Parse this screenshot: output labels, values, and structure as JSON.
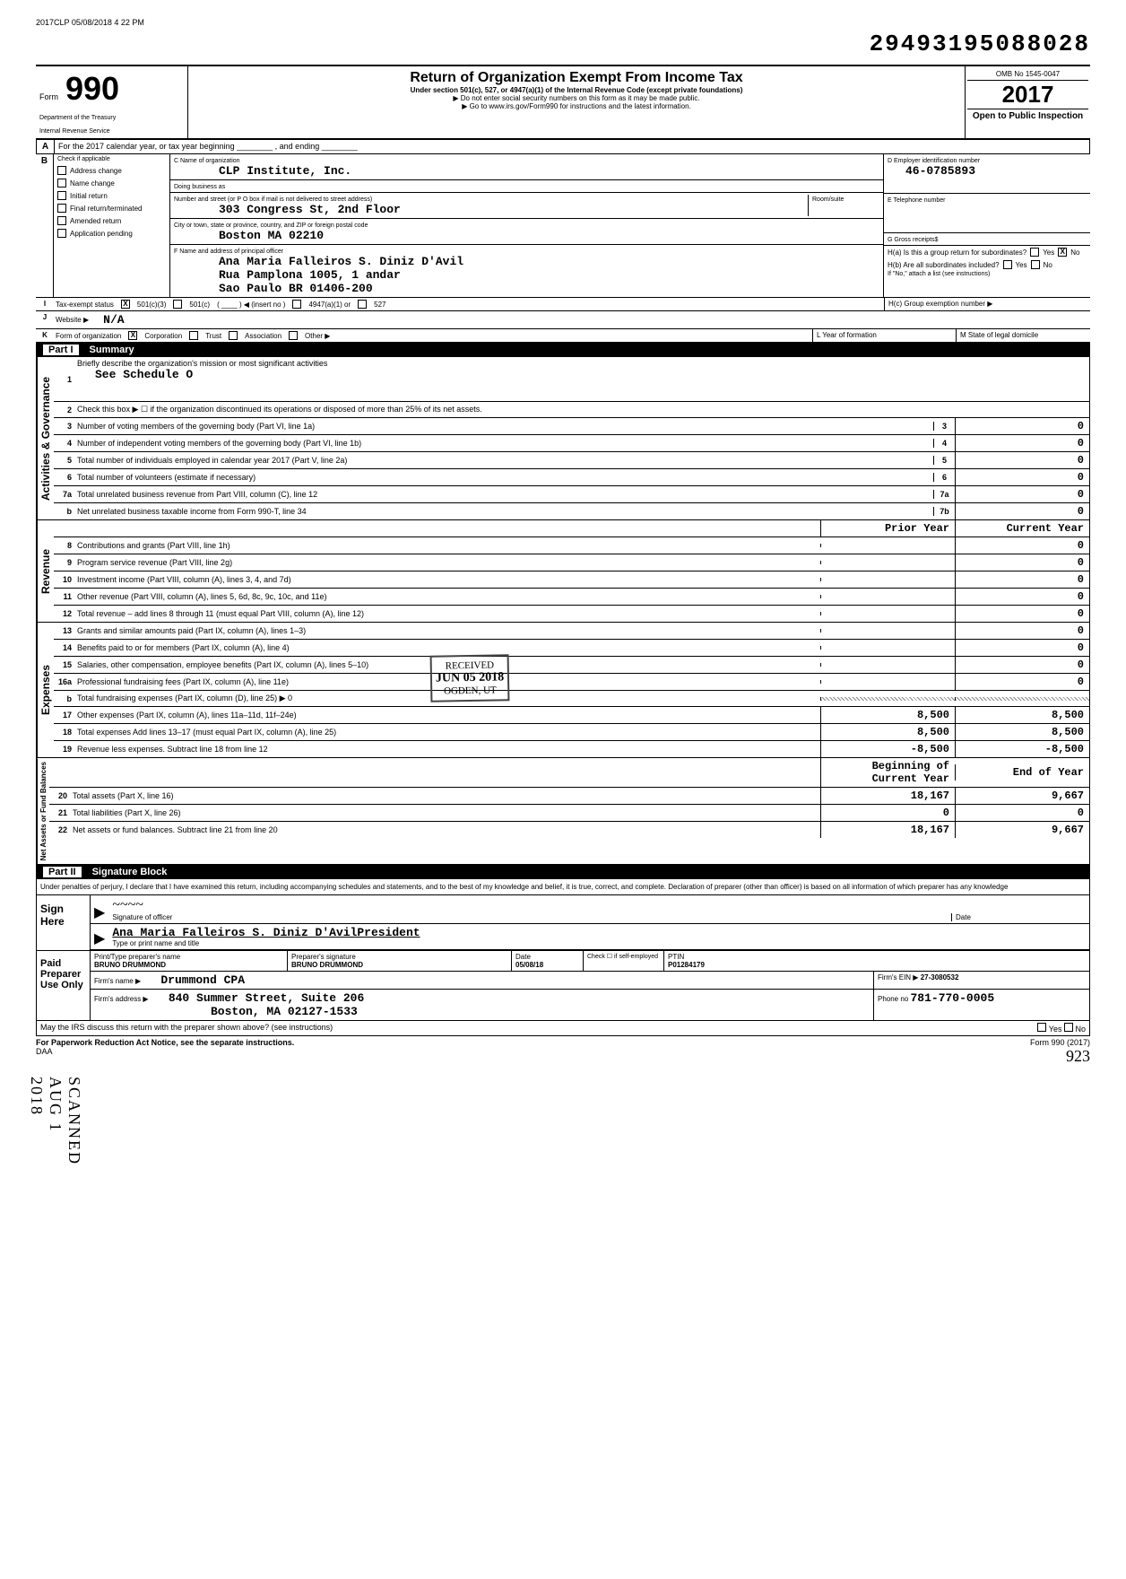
{
  "header_stamp": "2017CLP 05/08/2018 4 22 PM",
  "dln": "29493195088028",
  "form": {
    "prefix": "Form",
    "number": "990",
    "dept": "Department of the Treasury",
    "irs": "Internal Revenue Service",
    "title": "Return of Organization Exempt From Income Tax",
    "subtitle": "Under section 501(c), 527, or 4947(a)(1) of the Internal Revenue Code (except private foundations)",
    "instr1": "▶ Do not enter social security numbers on this form as it may be made public.",
    "instr2": "▶ Go to www.irs.gov/Form990 for instructions and the latest information.",
    "omb": "OMB No 1545-0047",
    "year": "2017",
    "pub_insp": "Open to Public Inspection"
  },
  "line_a": "For the 2017 calendar year, or tax year beginning ________ , and ending ________",
  "section_b": {
    "label": "Check if applicable",
    "items": [
      "Address change",
      "Name change",
      "Initial return",
      "Final return/terminated",
      "Amended return",
      "Application pending"
    ]
  },
  "section_c": {
    "name_label": "C Name of organization",
    "name": "CLP Institute, Inc.",
    "dba_label": "Doing business as",
    "addr_label": "Number and street (or P O box if mail is not delivered to street address)",
    "addr": "303 Congress St, 2nd Floor",
    "room_label": "Room/suite",
    "city_label": "City or town, state or province, country, and ZIP or foreign postal code",
    "city": "Boston                  MA 02210",
    "officer_label": "F Name and address of principal officer",
    "officer_name": "Ana Maria Falleiros S. Diniz D'Avil",
    "officer_addr1": "Rua Pamplona 1005, 1 andar",
    "officer_addr2": "Sao Paulo              BR 01406-200"
  },
  "section_d": {
    "ein_label": "D Employer identification number",
    "ein": "46-0785893",
    "phone_label": "E Telephone number",
    "gross_label": "G Gross receipts$"
  },
  "section_h": {
    "ha": "H(a) Is this a group return for subordinates?",
    "hb": "H(b) Are all subordinates included?",
    "hb_note": "If \"No,\" attach a list (see instructions)",
    "hc": "H(c) Group exemption number ▶",
    "yes": "Yes",
    "no": "No"
  },
  "line_i": {
    "label": "Tax-exempt status",
    "opts": [
      "501(c)(3)",
      "501(c)",
      "(insert no )",
      "4947(a)(1) or",
      "527"
    ]
  },
  "line_j": {
    "label": "Website ▶",
    "value": "N/A"
  },
  "line_k": {
    "label": "Form of organization",
    "opts": [
      "Corporation",
      "Trust",
      "Association",
      "Other ▶"
    ]
  },
  "line_l": "L  Year of formation",
  "line_m": "M  State of legal domicile",
  "part1": {
    "num": "Part I",
    "title": "Summary"
  },
  "activities": {
    "label": "Activities & Governance",
    "q1": "Briefly describe the organization's mission or most significant activities",
    "q1_val": "See Schedule O",
    "q2": "Check this box ▶ ☐ if the organization discontinued its operations or disposed of more than 25% of its net assets.",
    "rows": [
      {
        "n": "3",
        "d": "Number of voting members of the governing body (Part VI, line 1a)",
        "box": "3",
        "v": "0"
      },
      {
        "n": "4",
        "d": "Number of independent voting members of the governing body (Part VI, line 1b)",
        "box": "4",
        "v": "0"
      },
      {
        "n": "5",
        "d": "Total number of individuals employed in calendar year 2017 (Part V, line 2a)",
        "box": "5",
        "v": "0"
      },
      {
        "n": "6",
        "d": "Total number of volunteers (estimate if necessary)",
        "box": "6",
        "v": "0"
      },
      {
        "n": "7a",
        "d": "Total unrelated business revenue from Part VIII, column (C), line 12",
        "box": "7a",
        "v": "0"
      },
      {
        "n": "b",
        "d": "Net unrelated business taxable income from Form 990-T, line 34",
        "box": "7b",
        "v": "0"
      }
    ]
  },
  "col_headers": {
    "prior": "Prior Year",
    "current": "Current Year",
    "beg": "Beginning of Current Year",
    "end": "End of Year"
  },
  "revenue": {
    "label": "Revenue",
    "rows": [
      {
        "n": "8",
        "d": "Contributions and grants (Part VIII, line 1h)",
        "v1": "",
        "v2": "0"
      },
      {
        "n": "9",
        "d": "Program service revenue (Part VIII, line 2g)",
        "v1": "",
        "v2": "0"
      },
      {
        "n": "10",
        "d": "Investment income (Part VIII, column (A), lines 3, 4, and 7d)",
        "v1": "",
        "v2": "0"
      },
      {
        "n": "11",
        "d": "Other revenue (Part VIII, column (A), lines 5, 6d, 8c, 9c, 10c, and 11e)",
        "v1": "",
        "v2": "0"
      },
      {
        "n": "12",
        "d": "Total revenue – add lines 8 through 11 (must equal Part VIII, column (A), line 12)",
        "v1": "",
        "v2": "0"
      }
    ]
  },
  "expenses": {
    "label": "Expenses",
    "rows": [
      {
        "n": "13",
        "d": "Grants and similar amounts paid (Part IX, column (A), lines 1–3)",
        "v1": "",
        "v2": "0"
      },
      {
        "n": "14",
        "d": "Benefits paid to or for members (Part IX, column (A), line 4)",
        "v1": "",
        "v2": "0"
      },
      {
        "n": "15",
        "d": "Salaries, other compensation, employee benefits (Part IX, column (A), lines 5–10)",
        "v1": "",
        "v2": "0"
      },
      {
        "n": "16a",
        "d": "Professional fundraising fees (Part IX, column (A), line 11e)",
        "v1": "",
        "v2": "0"
      },
      {
        "n": "b",
        "d": "Total fundraising expenses (Part IX, column (D), line 25) ▶               0",
        "shaded": true
      },
      {
        "n": "17",
        "d": "Other expenses (Part IX, column (A), lines 11a–11d, 11f–24e)",
        "v1": "8,500",
        "v2": "8,500"
      },
      {
        "n": "18",
        "d": "Total expenses  Add lines 13–17 (must equal Part IX, column (A), line 25)",
        "v1": "8,500",
        "v2": "8,500"
      },
      {
        "n": "19",
        "d": "Revenue less expenses. Subtract line 18 from line 12",
        "v1": "-8,500",
        "v2": "-8,500"
      }
    ]
  },
  "netassets": {
    "label": "Net Assets or Fund Balances",
    "rows": [
      {
        "n": "20",
        "d": "Total assets (Part X, line 16)",
        "v1": "18,167",
        "v2": "9,667"
      },
      {
        "n": "21",
        "d": "Total liabilities (Part X, line 26)",
        "v1": "0",
        "v2": "0"
      },
      {
        "n": "22",
        "d": "Net assets or fund balances. Subtract line 21 from line 20",
        "v1": "18,167",
        "v2": "9,667"
      }
    ]
  },
  "part2": {
    "num": "Part II",
    "title": "Signature Block"
  },
  "sig": {
    "declaration": "Under penalties of perjury, I declare that I have examined this return, including accompanying schedules and statements, and to the best of my knowledge and belief, it is true, correct, and complete. Declaration of preparer (other than officer) is based on all information of which preparer has any knowledge",
    "sign_here": "Sign Here",
    "sig_label": "Signature of officer",
    "date_label": "Date",
    "type_label": "Type or print name and title",
    "officer_typed": "Ana Maria Falleiros S. Diniz D'AvilPresident"
  },
  "preparer": {
    "label": "Paid Preparer Use Only",
    "name_label": "Print/Type preparer's name",
    "name": "BRUNO DRUMMOND",
    "sig_label": "Preparer's signature",
    "sig": "BRUNO DRUMMOND",
    "date_label": "Date",
    "date": "05/08/18",
    "check_label": "Check ☐ if self-employed",
    "ptin_label": "PTIN",
    "ptin": "P01284179",
    "firm_label": "Firm's name ▶",
    "firm": "Drummond CPA",
    "firm_ein_label": "Firm's EIN ▶",
    "firm_ein": "27-3080532",
    "addr_label": "Firm's address ▶",
    "addr": "840 Summer Street, Suite 206",
    "city": "Boston, MA  02127-1533",
    "phone_label": "Phone no",
    "phone": "781-770-0005"
  },
  "bottom": {
    "discuss": "May the IRS discuss this return with the preparer shown above? (see instructions)",
    "yes": "Yes",
    "no": "No",
    "paperwork": "For Paperwork Reduction Act Notice, see the separate instructions.",
    "daa": "DAA",
    "form_ref": "Form 990 (2017)",
    "handwritten": "923"
  },
  "stamps": {
    "received": "RECEIVED",
    "received_date": "JUN 05 2018",
    "received_loc": "OGDEN, UT",
    "scanned": "SCANNED AUG 1 2018"
  }
}
